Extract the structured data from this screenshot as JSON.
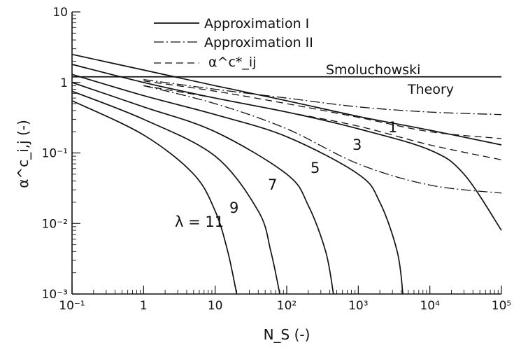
{
  "chart_data": {
    "type": "line",
    "xscale": "log",
    "yscale": "log",
    "xlim": [
      0.1,
      100000
    ],
    "ylim": [
      0.001,
      10
    ],
    "xlabel": "N_S (-)",
    "ylabel": "α^c_i,j (-)",
    "x_tick_labels": [
      "10⁻¹",
      "1",
      "10",
      "10²",
      "10³",
      "10⁴",
      "10⁵"
    ],
    "y_tick_labels": [
      "10⁻³",
      "10⁻²",
      "10⁻¹",
      "1",
      "10"
    ],
    "legend": {
      "placement": "top-center",
      "entries": [
        {
          "label": "Approximation I",
          "style": "solid"
        },
        {
          "label": "Approximation II",
          "style": "dash-dot"
        },
        {
          "label": "α^c*_ij",
          "style": "dashed"
        }
      ]
    },
    "reference_line": {
      "label_line1": "Smoluchowski",
      "label_line2": "Theory",
      "y": 1.2
    },
    "curve_labels": [
      "λ = 11",
      "9",
      "7",
      "5",
      "3",
      "1"
    ],
    "series": [
      {
        "label": "1",
        "style": "solid",
        "x": [
          0.1,
          1,
          10,
          100,
          1000,
          10000,
          100000
        ],
        "y": [
          2.5,
          1.5,
          0.9,
          0.55,
          0.33,
          0.21,
          0.13
        ]
      },
      {
        "label": "3",
        "style": "solid",
        "x": [
          0.1,
          1,
          10,
          100,
          1000,
          10000,
          30000,
          100000
        ],
        "y": [
          1.8,
          1.0,
          0.6,
          0.38,
          0.22,
          0.11,
          0.05,
          0.008
        ]
      },
      {
        "label": "5",
        "style": "solid",
        "x": [
          0.1,
          1,
          10,
          100,
          1000,
          2000,
          3500,
          4200
        ],
        "y": [
          1.3,
          0.65,
          0.35,
          0.17,
          0.05,
          0.02,
          0.004,
          0.001
        ]
      },
      {
        "label": "7",
        "style": "solid",
        "x": [
          0.1,
          1,
          10,
          100,
          200,
          350,
          450
        ],
        "y": [
          1.0,
          0.45,
          0.2,
          0.05,
          0.018,
          0.004,
          0.001
        ]
      },
      {
        "label": "9",
        "style": "solid",
        "x": [
          0.1,
          1,
          10,
          40,
          60,
          80
        ],
        "y": [
          0.75,
          0.3,
          0.09,
          0.015,
          0.004,
          0.001
        ]
      },
      {
        "label": "λ = 11",
        "style": "solid",
        "x": [
          0.1,
          1,
          5,
          10,
          15,
          20
        ],
        "y": [
          0.55,
          0.18,
          0.05,
          0.015,
          0.004,
          0.001
        ]
      },
      {
        "label": "Approximation II (upper)",
        "style": "dash-dot",
        "x": [
          1,
          10,
          100,
          1000,
          10000,
          100000
        ],
        "y": [
          1.1,
          0.8,
          0.6,
          0.45,
          0.38,
          0.35
        ]
      },
      {
        "label": "Approximation II (lower)",
        "style": "dash-dot",
        "x": [
          1,
          10,
          100,
          1000,
          10000,
          100000
        ],
        "y": [
          0.9,
          0.5,
          0.22,
          0.07,
          0.035,
          0.027
        ]
      },
      {
        "label": "α^c*_ij (upper)",
        "style": "dashed",
        "x": [
          1,
          10,
          100,
          1000,
          10000,
          100000
        ],
        "y": [
          1.05,
          0.75,
          0.5,
          0.32,
          0.2,
          0.16
        ]
      },
      {
        "label": "α^c*_ij (lower)",
        "style": "dashed",
        "x": [
          1,
          10,
          100,
          1000,
          10000,
          100000
        ],
        "y": [
          0.9,
          0.6,
          0.38,
          0.24,
          0.13,
          0.08
        ]
      }
    ]
  }
}
